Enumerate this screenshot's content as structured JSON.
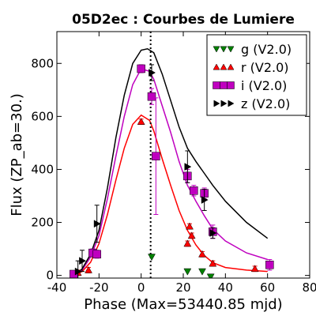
{
  "chart_data": {
    "type": "scatter",
    "title": "05D2ec : Courbes de Lumiere",
    "xlabel": "Phase (Max=53440.85 mjd)",
    "ylabel": "Flux (ZP_ab=30.)",
    "xlim": [
      -40,
      80
    ],
    "ylim": [
      -10,
      920
    ],
    "xticks": [
      -40,
      -20,
      0,
      20,
      40,
      60,
      80
    ],
    "yticks": [
      0,
      200,
      400,
      600,
      800
    ],
    "xtick_labels": [
      "-40",
      "-20",
      "0",
      "20",
      "40",
      "60",
      "80"
    ],
    "ytick_labels": [
      "0",
      "200",
      "400",
      "600",
      "800"
    ],
    "vline_x": 4.5,
    "legend_position": "top-right",
    "legend": [
      {
        "label": "g (V2.0)",
        "marker": "triangle-down",
        "color": "#008000"
      },
      {
        "label": "r (V2.0)",
        "marker": "triangle-up",
        "color": "#ff0000"
      },
      {
        "label": "i (V2.0)",
        "marker": "square",
        "color": "#bf00bf"
      },
      {
        "label": "z (V2.0)",
        "marker": "triangle-right",
        "color": "#000000"
      }
    ],
    "series": [
      {
        "marker": "triangle-down",
        "color": "#008000",
        "points": [
          {
            "x": 5,
            "y": 70
          },
          {
            "x": 22,
            "y": 15
          },
          {
            "x": 29,
            "y": 15
          },
          {
            "x": 33,
            "y": -5
          }
        ]
      },
      {
        "marker": "triangle-up",
        "color": "#ff0000",
        "points": [
          {
            "x": -30,
            "y": 10,
            "err": 10
          },
          {
            "x": -25,
            "y": 20,
            "err": 10
          },
          {
            "x": 0,
            "y": 580,
            "err": 10
          },
          {
            "x": 22,
            "y": 120,
            "err": 10
          },
          {
            "x": 23,
            "y": 185,
            "err": 10
          },
          {
            "x": 24,
            "y": 150,
            "err": 10
          },
          {
            "x": 29,
            "y": 80,
            "err": 10
          },
          {
            "x": 34,
            "y": 45,
            "err": 10
          },
          {
            "x": 54,
            "y": 25,
            "err": 10
          }
        ]
      },
      {
        "marker": "square",
        "color": "#bf00bf",
        "points": [
          {
            "x": -32,
            "y": 5,
            "err": 10
          },
          {
            "x": -23,
            "y": 85,
            "err": 15
          },
          {
            "x": -21,
            "y": 80,
            "err": 15
          },
          {
            "x": 0,
            "y": 780,
            "err": 15
          },
          {
            "x": 5,
            "y": 675,
            "err": 30
          },
          {
            "x": 7,
            "y": 450,
            "err": 220
          },
          {
            "x": 22,
            "y": 375,
            "err": 25
          },
          {
            "x": 25,
            "y": 320,
            "err": 20
          },
          {
            "x": 30,
            "y": 310,
            "err": 20
          },
          {
            "x": 34,
            "y": 165,
            "err": 25
          },
          {
            "x": 61,
            "y": 40,
            "err": 20
          }
        ]
      },
      {
        "marker": "triangle-right",
        "color": "#000000",
        "points": [
          {
            "x": -30,
            "y": 15,
            "err": 40
          },
          {
            "x": -28,
            "y": 55,
            "err": 40
          },
          {
            "x": -21,
            "y": 195,
            "err": 70
          },
          {
            "x": 5,
            "y": 765,
            "err": 30
          },
          {
            "x": 22,
            "y": 410,
            "err": 60
          },
          {
            "x": 30,
            "y": 285,
            "err": 40
          },
          {
            "x": 34,
            "y": 160,
            "err": 20
          }
        ]
      }
    ],
    "curves": [
      {
        "color": "#ff0000",
        "points": [
          [
            -32,
            0
          ],
          [
            -28,
            15
          ],
          [
            -24,
            50
          ],
          [
            -20,
            120
          ],
          [
            -16,
            230
          ],
          [
            -12,
            360
          ],
          [
            -8,
            480
          ],
          [
            -4,
            570
          ],
          [
            0,
            605
          ],
          [
            4,
            585
          ],
          [
            6,
            545
          ],
          [
            10,
            440
          ],
          [
            14,
            340
          ],
          [
            18,
            245
          ],
          [
            22,
            170
          ],
          [
            26,
            115
          ],
          [
            30,
            75
          ],
          [
            34,
            48
          ],
          [
            40,
            30
          ],
          [
            50,
            20
          ],
          [
            60,
            15
          ]
        ]
      },
      {
        "color": "#bf00bf",
        "points": [
          [
            -32,
            0
          ],
          [
            -28,
            20
          ],
          [
            -24,
            70
          ],
          [
            -20,
            150
          ],
          [
            -16,
            290
          ],
          [
            -12,
            450
          ],
          [
            -8,
            600
          ],
          [
            -4,
            720
          ],
          [
            0,
            780
          ],
          [
            4,
            770
          ],
          [
            6,
            740
          ],
          [
            10,
            640
          ],
          [
            14,
            540
          ],
          [
            18,
            430
          ],
          [
            22,
            340
          ],
          [
            26,
            280
          ],
          [
            30,
            225
          ],
          [
            34,
            175
          ],
          [
            40,
            130
          ],
          [
            50,
            85
          ],
          [
            60,
            60
          ]
        ]
      },
      {
        "color": "#000000",
        "points": [
          [
            -32,
            0
          ],
          [
            -28,
            25
          ],
          [
            -24,
            80
          ],
          [
            -20,
            170
          ],
          [
            -16,
            330
          ],
          [
            -12,
            520
          ],
          [
            -8,
            680
          ],
          [
            -4,
            800
          ],
          [
            0,
            850
          ],
          [
            3,
            855
          ],
          [
            6,
            840
          ],
          [
            10,
            760
          ],
          [
            14,
            660
          ],
          [
            18,
            560
          ],
          [
            22,
            480
          ],
          [
            26,
            430
          ],
          [
            30,
            385
          ],
          [
            34,
            340
          ],
          [
            40,
            280
          ],
          [
            50,
            200
          ],
          [
            60,
            140
          ]
        ]
      }
    ]
  }
}
